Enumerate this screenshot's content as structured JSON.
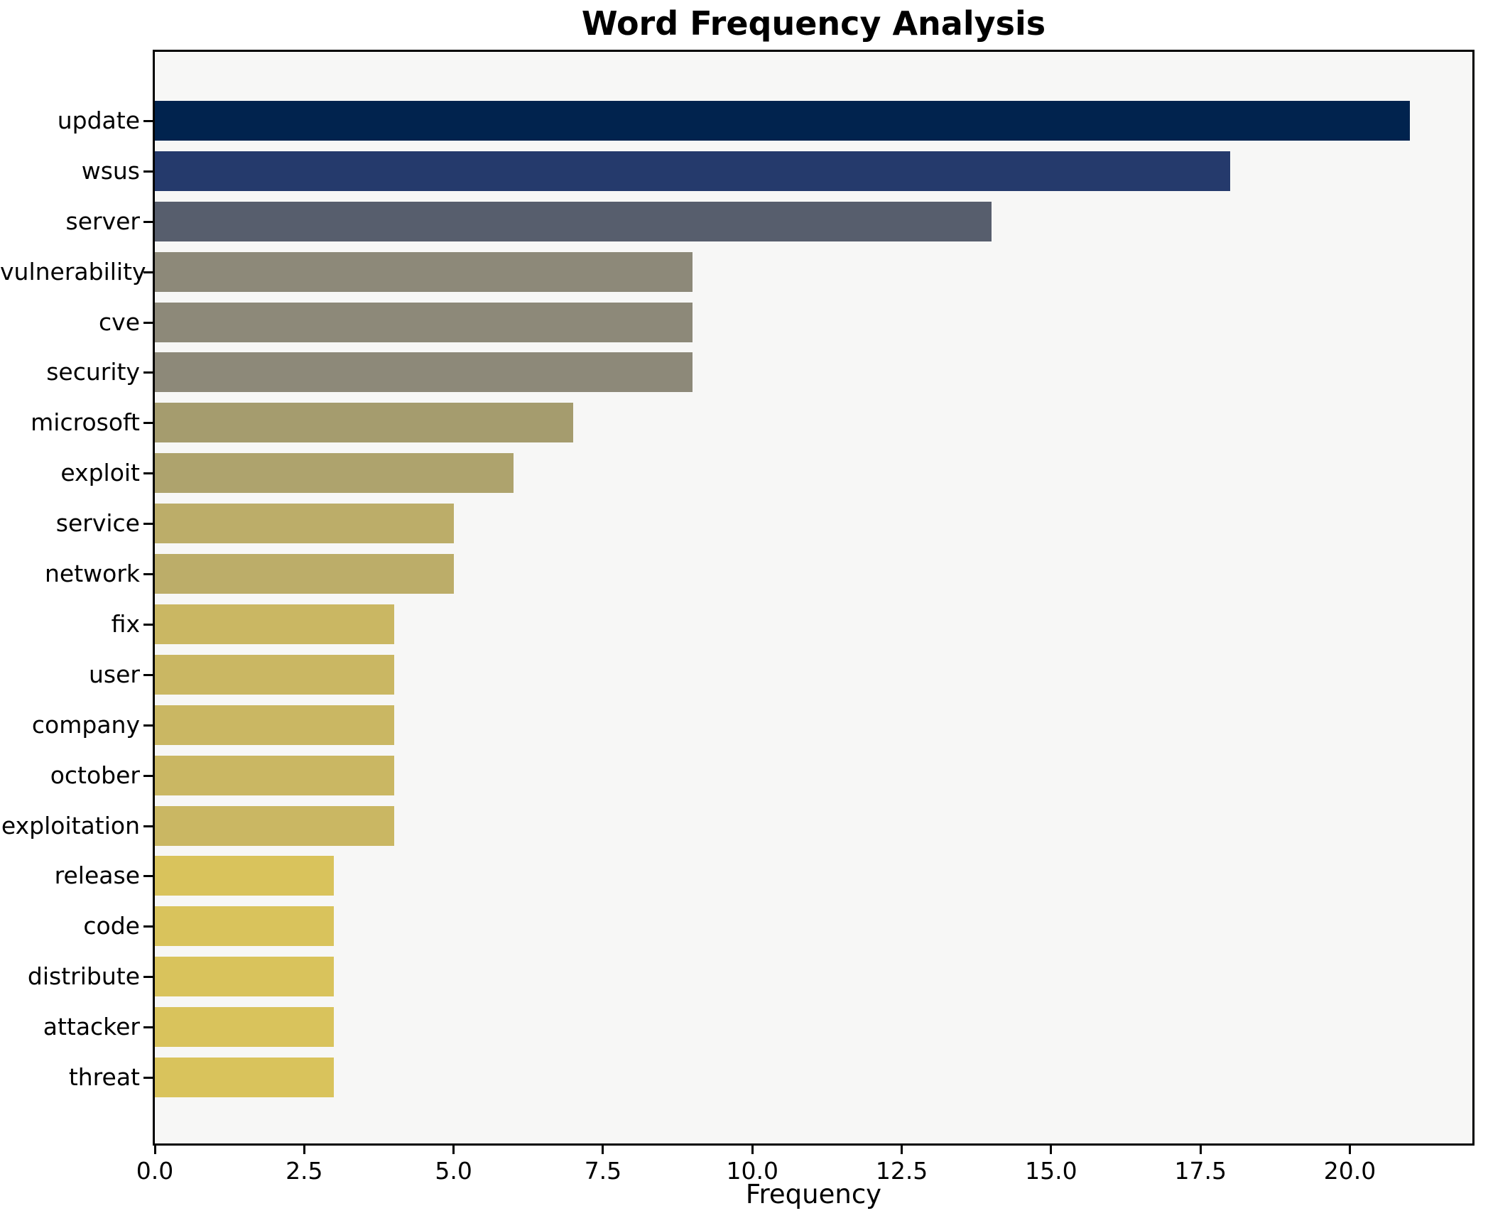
{
  "chart_data": {
    "type": "bar",
    "orientation": "horizontal",
    "title": "Word Frequency Analysis",
    "xlabel": "Frequency",
    "ylabel": "",
    "categories": [
      "update",
      "wsus",
      "server",
      "vulnerability",
      "cve",
      "security",
      "microsoft",
      "exploit",
      "service",
      "network",
      "fix",
      "user",
      "company",
      "october",
      "exploitation",
      "release",
      "code",
      "distribute",
      "attacker",
      "threat"
    ],
    "values": [
      21,
      18,
      14,
      9,
      9,
      9,
      7,
      6,
      5,
      5,
      4,
      4,
      4,
      4,
      4,
      3,
      3,
      3,
      3,
      3
    ],
    "bar_colors": [
      "#01234e",
      "#253a6c",
      "#575e6d",
      "#8d8979",
      "#8d8979",
      "#8d8979",
      "#a59c6e",
      "#aea36d",
      "#bcad69",
      "#bcad69",
      "#cab763",
      "#cab763",
      "#cab763",
      "#cab763",
      "#cab763",
      "#d9c35c",
      "#d9c35c",
      "#d9c35c",
      "#d9c35c",
      "#d9c35c"
    ],
    "xlim": [
      0,
      22.05
    ],
    "xticks": [
      0,
      2.5,
      5,
      7.5,
      10,
      12.5,
      15,
      17.5,
      20
    ],
    "xtick_labels": [
      "0.0",
      "2.5",
      "5.0",
      "7.5",
      "10.0",
      "12.5",
      "15.0",
      "17.5",
      "20.0"
    ],
    "grid": false,
    "legend": "none",
    "plot_background": "#f7f7f6",
    "figure_background": "#ffffff",
    "colormap": "cividis (high value = dark blue, low value = gold)"
  }
}
